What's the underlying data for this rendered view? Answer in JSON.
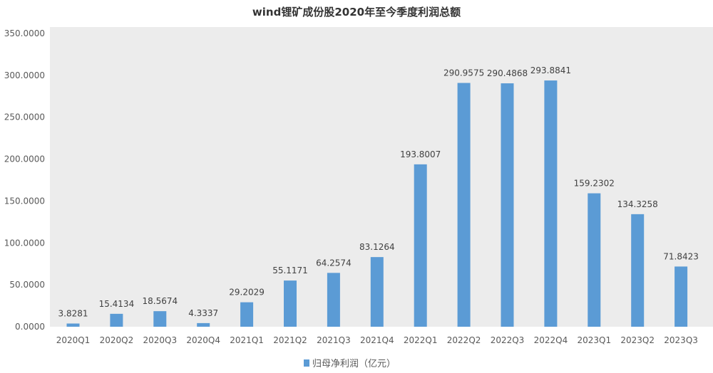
{
  "chart_data": {
    "type": "bar",
    "title": "wind锂矿成份股2020年至今季度利润总额",
    "categories": [
      "2020Q1",
      "2020Q2",
      "2020Q3",
      "2020Q4",
      "2021Q1",
      "2021Q2",
      "2021Q3",
      "2021Q4",
      "2022Q1",
      "2022Q2",
      "2022Q3",
      "2022Q4",
      "2023Q1",
      "2023Q2",
      "2023Q3"
    ],
    "series": [
      {
        "name": "归母净利润（亿元）",
        "values": [
          3.8281,
          15.4134,
          18.5674,
          4.3337,
          29.2029,
          55.1171,
          64.2574,
          83.1264,
          193.8007,
          290.9575,
          290.4868,
          293.8841,
          159.2302,
          134.3258,
          71.8423
        ],
        "labels": [
          "3.8281",
          "15.4134",
          "18.5674",
          "4.3337",
          "29.2029",
          "55.1171",
          "64.2574",
          "83.1264",
          "193.8007",
          "290.9575",
          "290.4868",
          "293.8841",
          "159.2302",
          "134.3258",
          "71.8423"
        ]
      }
    ],
    "y_ticks": [
      "0.0000",
      "50.0000",
      "100.0000",
      "150.0000",
      "200.0000",
      "250.0000",
      "300.0000",
      "350.0000"
    ],
    "ylim": [
      0,
      350
    ],
    "grid": false,
    "legend_position": "bottom",
    "colors": {
      "bar": "#5b9bd5",
      "plot_background": "#ececec"
    }
  }
}
